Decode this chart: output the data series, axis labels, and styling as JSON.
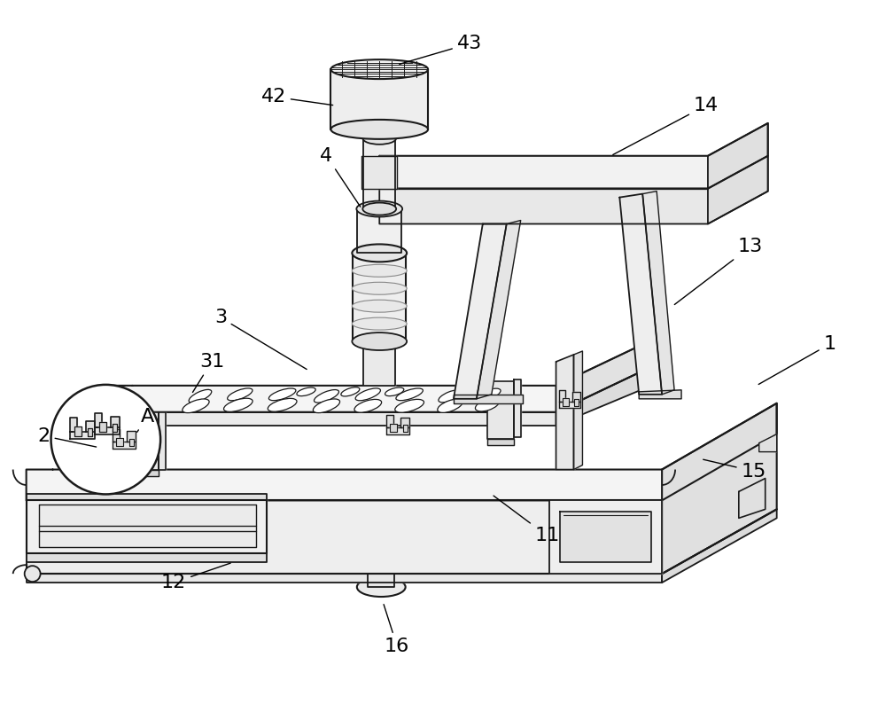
{
  "bg_color": "#ffffff",
  "line_color": "#1a1a1a",
  "figsize": [
    10.0,
    7.94
  ],
  "dpi": 100,
  "annotations": [
    [
      "43",
      530,
      48,
      448,
      72
    ],
    [
      "42",
      308,
      108,
      378,
      118
    ],
    [
      "4",
      368,
      175,
      408,
      235
    ],
    [
      "14",
      798,
      118,
      690,
      175
    ],
    [
      "13",
      848,
      278,
      760,
      345
    ],
    [
      "1",
      938,
      388,
      855,
      435
    ],
    [
      "3",
      248,
      358,
      348,
      418
    ],
    [
      "31",
      238,
      408,
      215,
      445
    ],
    [
      "2",
      48,
      492,
      110,
      505
    ],
    [
      "A",
      165,
      470,
      152,
      490
    ],
    [
      "11",
      618,
      605,
      555,
      558
    ],
    [
      "12",
      195,
      658,
      262,
      635
    ],
    [
      "15",
      852,
      532,
      792,
      518
    ],
    [
      "16",
      448,
      730,
      432,
      680
    ]
  ]
}
